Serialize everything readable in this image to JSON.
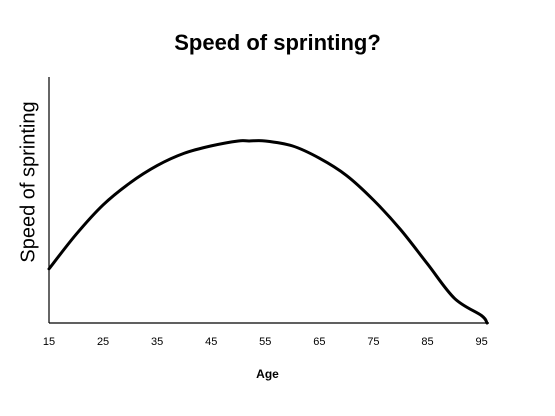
{
  "chart_data": {
    "type": "line",
    "title": "Speed of sprinting?",
    "xlabel": "Age",
    "ylabel": "Speed of sprinting",
    "x_ticks": [
      15,
      25,
      35,
      45,
      55,
      65,
      75,
      85,
      95
    ],
    "x_tick_labels": [
      "15",
      "25",
      "35",
      "45",
      "55",
      "65",
      "75",
      "85",
      "95"
    ],
    "xlim": [
      15,
      96
    ],
    "ylim": [
      0,
      1
    ],
    "y_ticks_shown": false,
    "grid": false,
    "legend": "none",
    "line_color": "#000000",
    "series": [
      {
        "x": [
          15,
          20,
          25,
          30,
          35,
          40,
          45,
          50,
          52,
          55,
          60,
          65,
          70,
          75,
          80,
          85,
          90,
          95,
          96
        ],
        "values": [
          0.22,
          0.36,
          0.48,
          0.57,
          0.64,
          0.69,
          0.72,
          0.74,
          0.74,
          0.74,
          0.72,
          0.67,
          0.6,
          0.5,
          0.38,
          0.24,
          0.1,
          0.03,
          0.0
        ]
      }
    ]
  }
}
